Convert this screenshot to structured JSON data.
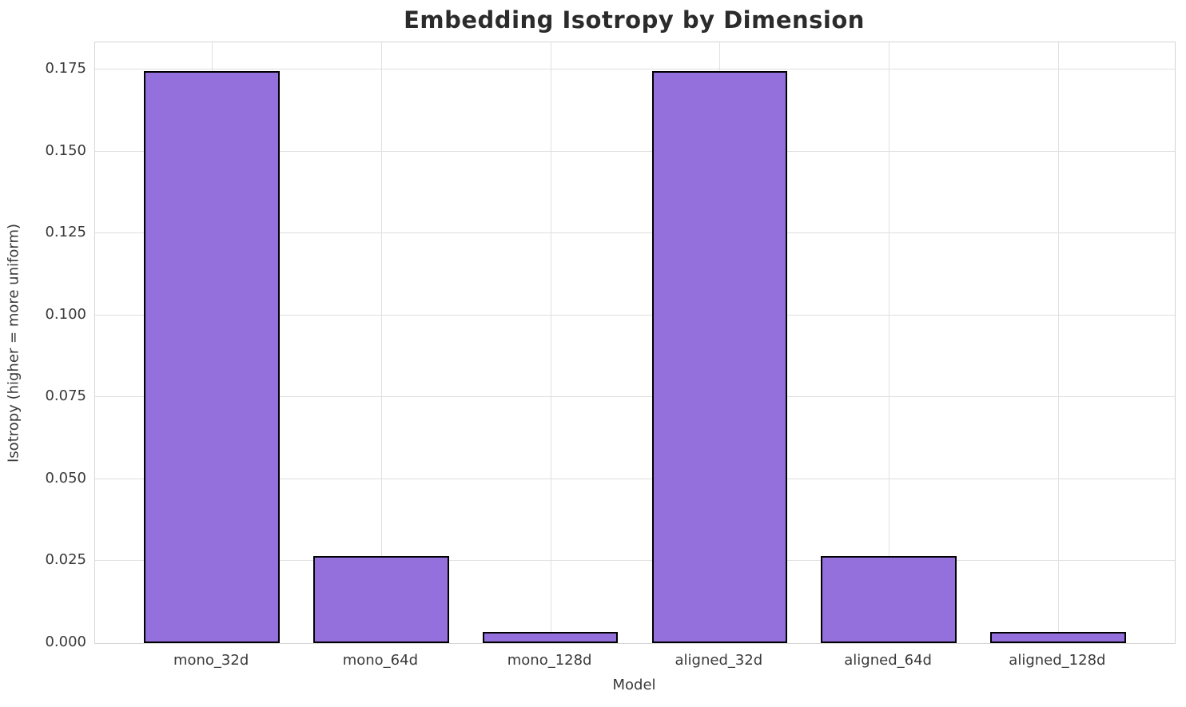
{
  "chart_data": {
    "type": "bar",
    "title": "Embedding Isotropy by Dimension",
    "xlabel": "Model",
    "ylabel": "Isotropy (higher = more uniform)",
    "categories": [
      "mono_32d",
      "mono_64d",
      "mono_128d",
      "aligned_32d",
      "aligned_64d",
      "aligned_128d"
    ],
    "values": [
      0.1746,
      0.0266,
      0.0035,
      0.1746,
      0.0266,
      0.0035
    ],
    "ytick_labels": [
      "0.000",
      "0.025",
      "0.050",
      "0.075",
      "0.100",
      "0.125",
      "0.150",
      "0.175"
    ],
    "ylim": [
      0,
      0.1833
    ],
    "grid": true,
    "legend": "none",
    "bar_color": "#9370DB",
    "bar_edge_color": "#000000",
    "grid_color": "#e0e0e0",
    "title_color": "#2b2b2b",
    "text_color": "#3a3a3a"
  }
}
